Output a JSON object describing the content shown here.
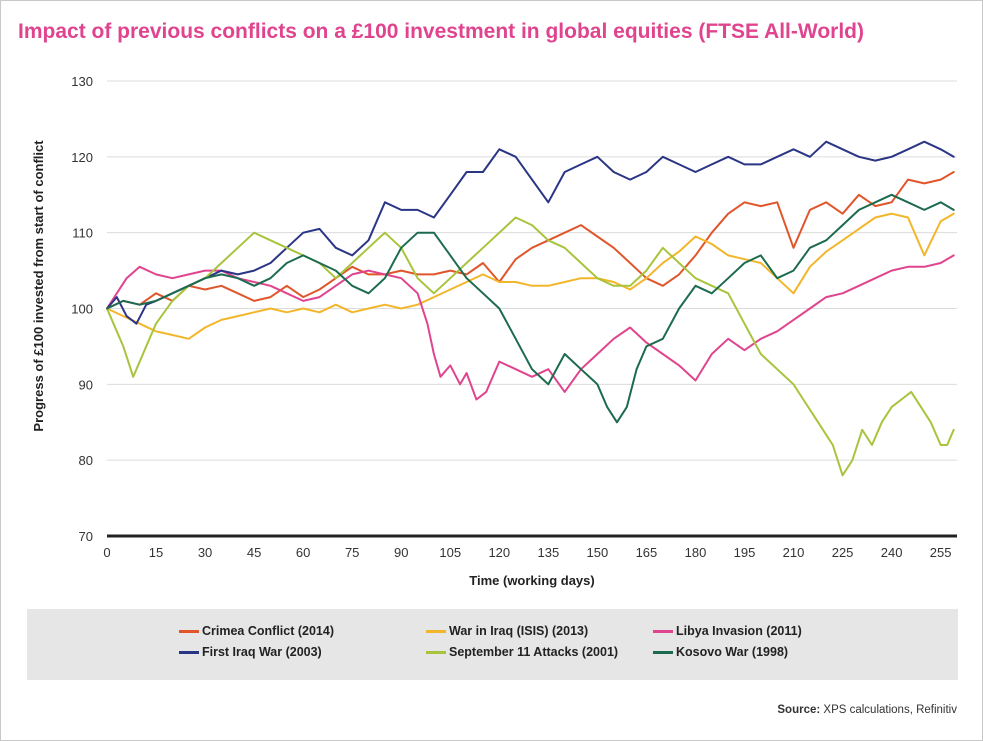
{
  "colors": {
    "title": "#e0448f",
    "axis": "#222222",
    "grid": "#dcdcdc",
    "legend_bg": "#e6e6e6"
  },
  "source": {
    "label": "Source:",
    "text": " XPS calculations, Refinitiv"
  },
  "chart_data": {
    "type": "line",
    "title": "Impact of previous conflicts on a £100 investment in global equities (FTSE All-World)",
    "xlabel": "Time (working days)",
    "ylabel": "Progress of £100 invested from start of conflict",
    "xlim": [
      0,
      260
    ],
    "ylim": [
      70,
      130
    ],
    "xticks": [
      0,
      15,
      30,
      45,
      60,
      75,
      90,
      105,
      120,
      135,
      150,
      165,
      180,
      195,
      210,
      225,
      240,
      255
    ],
    "yticks": [
      70,
      80,
      90,
      100,
      110,
      120,
      130
    ],
    "grid": "horizontal",
    "legend_position": "bottom",
    "series": [
      {
        "name": "Crimea Conflict (2014)",
        "color": "#e0562a",
        "x": [
          0,
          5,
          10,
          15,
          20,
          25,
          30,
          35,
          40,
          45,
          50,
          55,
          60,
          65,
          70,
          75,
          80,
          85,
          90,
          95,
          100,
          105,
          110,
          115,
          120,
          125,
          130,
          135,
          140,
          145,
          150,
          155,
          160,
          165,
          170,
          175,
          180,
          185,
          190,
          195,
          200,
          205,
          210,
          215,
          220,
          225,
          230,
          235,
          240,
          245,
          250,
          255,
          259
        ],
        "y": [
          100,
          101,
          100.5,
          102,
          101,
          103,
          102.5,
          103,
          102,
          101,
          101.5,
          103,
          101.5,
          102.5,
          104,
          105.5,
          104.5,
          104.5,
          105,
          104.5,
          104.5,
          105,
          104.5,
          106,
          103.5,
          106.5,
          108,
          109,
          110,
          111,
          109.5,
          108,
          106,
          104,
          103,
          104.5,
          107,
          110,
          112.5,
          114,
          113.5,
          114,
          108,
          113,
          114,
          112.5,
          115,
          113.5,
          114,
          117,
          116.5,
          117,
          118
        ]
      },
      {
        "name": "War in Iraq (ISIS) (2013)",
        "color": "#f2b62b",
        "x": [
          0,
          5,
          10,
          15,
          20,
          25,
          30,
          35,
          40,
          45,
          50,
          55,
          60,
          65,
          70,
          75,
          80,
          85,
          90,
          95,
          100,
          105,
          110,
          115,
          120,
          125,
          130,
          135,
          140,
          145,
          150,
          155,
          160,
          165,
          170,
          175,
          180,
          185,
          190,
          195,
          200,
          205,
          210,
          215,
          220,
          225,
          230,
          235,
          240,
          245,
          250,
          255,
          259
        ],
        "y": [
          100,
          99,
          98,
          97,
          96.5,
          96,
          97.5,
          98.5,
          99,
          99.5,
          100,
          99.5,
          100,
          99.5,
          100.5,
          99.5,
          100,
          100.5,
          100,
          100.5,
          101.5,
          102.5,
          103.5,
          104.5,
          103.5,
          103.5,
          103,
          103,
          103.5,
          104,
          104,
          103.5,
          102.5,
          104,
          106,
          107.5,
          109.5,
          108.5,
          107,
          106.5,
          106,
          104,
          102,
          105.5,
          107.5,
          109,
          110.5,
          112,
          112.5,
          112,
          107,
          111.5,
          112.5
        ]
      },
      {
        "name": "Libya Invasion (2011)",
        "color": "#e0448f",
        "x": [
          0,
          3,
          6,
          10,
          15,
          20,
          25,
          30,
          35,
          40,
          45,
          50,
          55,
          60,
          65,
          70,
          75,
          80,
          85,
          90,
          95,
          98,
          100,
          102,
          105,
          108,
          110,
          113,
          116,
          120,
          125,
          130,
          135,
          140,
          145,
          150,
          155,
          160,
          165,
          170,
          175,
          180,
          185,
          190,
          195,
          200,
          205,
          210,
          215,
          220,
          225,
          230,
          235,
          240,
          245,
          250,
          255,
          259
        ],
        "y": [
          100,
          102,
          104,
          105.5,
          104.5,
          104,
          104.5,
          105,
          105,
          104,
          103.5,
          103,
          102,
          101,
          101.5,
          103,
          104.5,
          105,
          104.5,
          104,
          102,
          98,
          94,
          91,
          92.5,
          90,
          91.5,
          88,
          89,
          93,
          92,
          91,
          92,
          89,
          92,
          94,
          96,
          97.5,
          95.5,
          94,
          92.5,
          90.5,
          94,
          96,
          94.5,
          96,
          97,
          98.5,
          100,
          101.5,
          102,
          103,
          104,
          105,
          105.5,
          105.5,
          106,
          107
        ]
      },
      {
        "name": "First Iraq War (2003)",
        "color": "#2a3585",
        "x": [
          0,
          3,
          6,
          9,
          12,
          15,
          20,
          25,
          30,
          35,
          40,
          45,
          50,
          55,
          60,
          65,
          70,
          75,
          80,
          85,
          90,
          95,
          100,
          105,
          110,
          115,
          120,
          125,
          130,
          135,
          140,
          145,
          150,
          155,
          160,
          165,
          170,
          175,
          180,
          185,
          190,
          195,
          200,
          205,
          210,
          215,
          220,
          225,
          230,
          235,
          240,
          245,
          250,
          255,
          259
        ],
        "y": [
          100,
          101.5,
          99,
          98,
          100.5,
          101,
          102,
          103,
          104,
          105,
          104.5,
          105,
          106,
          108,
          110,
          110.5,
          108,
          107,
          109,
          114,
          113,
          113,
          112,
          115,
          118,
          118,
          121,
          120,
          117,
          114,
          118,
          119,
          120,
          118,
          117,
          118,
          120,
          119,
          118,
          119,
          120,
          119,
          119,
          120,
          121,
          120,
          122,
          121,
          120,
          119.5,
          120,
          121,
          122,
          121,
          120
        ]
      },
      {
        "name": "September 11 Attacks (2001)",
        "color": "#a7c43c",
        "x": [
          0,
          3,
          5,
          8,
          10,
          12,
          15,
          20,
          25,
          30,
          35,
          40,
          45,
          50,
          55,
          60,
          65,
          70,
          75,
          80,
          85,
          90,
          95,
          100,
          105,
          110,
          115,
          120,
          125,
          130,
          135,
          140,
          145,
          150,
          155,
          160,
          165,
          170,
          175,
          180,
          185,
          190,
          195,
          200,
          205,
          210,
          213,
          216,
          219,
          222,
          225,
          228,
          231,
          234,
          237,
          240,
          243,
          246,
          249,
          252,
          255,
          257,
          259
        ],
        "y": [
          100,
          97,
          95,
          91,
          93,
          95,
          98,
          101,
          103,
          104,
          106,
          108,
          110,
          109,
          108,
          107,
          106,
          104,
          106,
          108,
          110,
          108,
          104,
          102,
          104,
          106,
          108,
          110,
          112,
          111,
          109,
          108,
          106,
          104,
          103,
          103,
          105,
          108,
          106,
          104,
          103,
          102,
          98,
          94,
          92,
          90,
          88,
          86,
          84,
          82,
          78,
          80,
          84,
          82,
          85,
          87,
          88,
          89,
          87,
          85,
          82,
          82,
          84
        ]
      },
      {
        "name": "Kosovo War (1998)",
        "color": "#1d6b4f",
        "x": [
          0,
          5,
          10,
          15,
          20,
          25,
          30,
          35,
          40,
          45,
          50,
          55,
          60,
          65,
          70,
          75,
          80,
          85,
          90,
          95,
          100,
          105,
          110,
          115,
          120,
          125,
          130,
          135,
          140,
          145,
          150,
          153,
          156,
          159,
          162,
          165,
          170,
          175,
          180,
          185,
          190,
          195,
          200,
          205,
          210,
          215,
          220,
          225,
          230,
          235,
          240,
          245,
          250,
          255,
          259
        ],
        "y": [
          100,
          101,
          100.5,
          101,
          102,
          103,
          104,
          104.5,
          104,
          103,
          104,
          106,
          107,
          106,
          105,
          103,
          102,
          104,
          108,
          110,
          110,
          107,
          104,
          102,
          100,
          96,
          92,
          90,
          94,
          92,
          90,
          87,
          85,
          87,
          92,
          95,
          96,
          100,
          103,
          102,
          104,
          106,
          107,
          104,
          105,
          108,
          109,
          111,
          113,
          114,
          115,
          114,
          113,
          114,
          113
        ]
      }
    ]
  }
}
